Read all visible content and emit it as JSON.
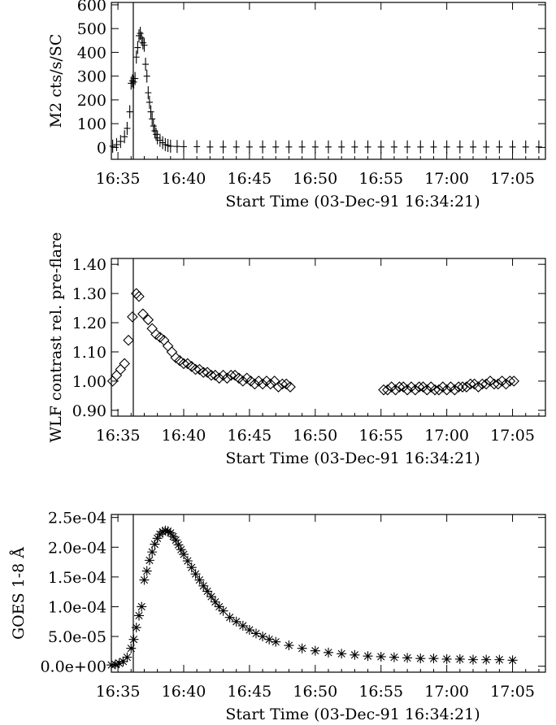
{
  "chart_data": [
    {
      "type": "scatter",
      "marker": "plus-with-error-bars",
      "xlabel": "Start Time (03-Dec-91 16:34:21)",
      "ylabel": "M2 cts/s/SC",
      "x_tick_labels": [
        "16:35",
        "16:40",
        "16:45",
        "16:50",
        "16:55",
        "17:00",
        "17:05"
      ],
      "y_tick_labels": [
        "0",
        "100",
        "200",
        "300",
        "400",
        "500",
        "600"
      ],
      "xlim_minutes_after_16_34": [
        0.5,
        33.5
      ],
      "ylim": [
        -50,
        610
      ],
      "vertical_marker_time": "16:36:10",
      "x": [
        0.6,
        0.9,
        1.2,
        1.5,
        1.7,
        1.9,
        2.0,
        2.1,
        2.2,
        2.3,
        2.4,
        2.5,
        2.6,
        2.7,
        2.8,
        2.9,
        3.0,
        3.1,
        3.2,
        3.3,
        3.4,
        3.5,
        3.6,
        3.7,
        3.8,
        3.9,
        4.0,
        4.2,
        4.4,
        4.6,
        4.8,
        5.0,
        5.5,
        6,
        7,
        8,
        9,
        10,
        11,
        12,
        13,
        14,
        15,
        16,
        17,
        18,
        19,
        20,
        21,
        22,
        23,
        24,
        25,
        26,
        27,
        28,
        29,
        30,
        31,
        32,
        33
      ],
      "y": [
        5,
        12,
        25,
        45,
        80,
        150,
        270,
        280,
        275,
        290,
        380,
        420,
        470,
        480,
        460,
        440,
        430,
        350,
        300,
        230,
        190,
        150,
        120,
        90,
        70,
        55,
        40,
        30,
        20,
        12,
        8,
        5,
        4,
        3,
        3,
        2,
        2,
        2,
        2,
        2,
        2,
        2,
        2,
        2,
        2,
        2,
        2,
        2,
        2,
        2,
        2,
        2,
        2,
        2,
        2,
        2,
        2,
        2,
        2,
        2,
        2
      ]
    },
    {
      "type": "scatter",
      "marker": "diamond",
      "xlabel": "Start Time (03-Dec-91 16:34:21)",
      "ylabel": "WLF contrast rel. pre-flare",
      "x_tick_labels": [
        "16:35",
        "16:40",
        "16:45",
        "16:50",
        "16:55",
        "17:00",
        "17:05"
      ],
      "y_tick_labels": [
        "0.90",
        "1.00",
        "1.10",
        "1.20",
        "1.30",
        "1.40"
      ],
      "xlim_minutes_after_16_34": [
        0.5,
        33.5
      ],
      "ylim": [
        0.88,
        1.42
      ],
      "vertical_marker_time": "16:36:10",
      "x": [
        0.6,
        0.9,
        1.2,
        1.5,
        1.8,
        2.1,
        2.4,
        2.6,
        2.9,
        3.3,
        3.6,
        3.9,
        4.2,
        4.5,
        4.8,
        5.1,
        5.4,
        5.7,
        6.0,
        6.3,
        6.6,
        6.9,
        7.2,
        7.5,
        7.8,
        8.1,
        8.4,
        8.7,
        9.0,
        9.3,
        9.6,
        9.9,
        10.2,
        10.5,
        10.8,
        11.1,
        11.4,
        11.7,
        12.0,
        12.3,
        12.6,
        12.9,
        13.2,
        13.5,
        13.8,
        14.1,
        21.2,
        21.5,
        21.8,
        22.1,
        22.4,
        22.7,
        23.0,
        23.3,
        23.6,
        23.9,
        24.2,
        24.5,
        24.8,
        25.1,
        25.4,
        25.7,
        26.0,
        26.3,
        26.6,
        26.9,
        27.2,
        27.5,
        27.8,
        28.1,
        28.4,
        28.7,
        29.0,
        29.3,
        29.6,
        29.9,
        30.2,
        30.5,
        30.8,
        31.1
      ],
      "y": [
        1.0,
        1.02,
        1.04,
        1.06,
        1.14,
        1.22,
        1.3,
        1.29,
        1.23,
        1.21,
        1.18,
        1.16,
        1.15,
        1.14,
        1.12,
        1.1,
        1.08,
        1.07,
        1.06,
        1.06,
        1.05,
        1.04,
        1.04,
        1.03,
        1.03,
        1.02,
        1.02,
        1.01,
        1.02,
        1.01,
        1.02,
        1.02,
        1.01,
        1.0,
        1.01,
        1.0,
        0.99,
        1.0,
        0.99,
        1.0,
        0.99,
        1.0,
        0.98,
        0.99,
        0.99,
        0.98,
        0.97,
        0.97,
        0.98,
        0.97,
        0.98,
        0.98,
        0.97,
        0.98,
        0.97,
        0.98,
        0.98,
        0.97,
        0.98,
        0.97,
        0.97,
        0.98,
        0.97,
        0.98,
        0.97,
        0.98,
        0.98,
        0.98,
        0.99,
        0.99,
        0.98,
        0.99,
        0.99,
        1.0,
        0.99,
        0.99,
        1.0,
        0.99,
        1.0,
        1.0
      ]
    },
    {
      "type": "scatter",
      "marker": "asterisk",
      "xlabel": "Start Time (03-Dec-91 16:34:21)",
      "ylabel": "GOES 1-8 Å",
      "x_tick_labels": [
        "16:35",
        "16:40",
        "16:45",
        "16:50",
        "16:55",
        "17:00",
        "17:05"
      ],
      "y_tick_labels": [
        "0.0e+00",
        "5.0e-05",
        "1.0e-04",
        "1.5e-04",
        "2.0e-04",
        "2.5e-04"
      ],
      "xlim_minutes_after_16_34": [
        0.5,
        33.5
      ],
      "ylim": [
        -1e-05,
        0.000255
      ],
      "vertical_marker_time": "16:36:10",
      "x": [
        0.5,
        0.8,
        1.1,
        1.4,
        1.7,
        2.0,
        2.2,
        2.4,
        2.6,
        2.8,
        3.0,
        3.2,
        3.4,
        3.6,
        3.8,
        4.0,
        4.2,
        4.4,
        4.6,
        4.8,
        5.0,
        5.2,
        5.4,
        5.6,
        5.8,
        6.0,
        6.3,
        6.6,
        6.9,
        7.2,
        7.5,
        7.8,
        8.1,
        8.4,
        8.7,
        9.0,
        9.5,
        10.0,
        10.5,
        11.0,
        11.5,
        12.0,
        12.5,
        13.0,
        14,
        15,
        16,
        17,
        18,
        19,
        20,
        21,
        22,
        23,
        24,
        25,
        26,
        27,
        28,
        29,
        30,
        31
      ],
      "y": [
        2e-06,
        3e-06,
        5e-06,
        8e-06,
        1.5e-05,
        3e-05,
        4.5e-05,
        6.5e-05,
        8.5e-05,
        0.0001,
        0.000145,
        0.00016,
        0.000178,
        0.000192,
        0.000205,
        0.000215,
        0.000222,
        0.000226,
        0.000228,
        0.000227,
        0.000224,
        0.000218,
        0.000212,
        0.000204,
        0.000196,
        0.000188,
        0.000177,
        0.000166,
        0.000155,
        0.000145,
        0.000135,
        0.000126,
        0.000117,
        0.000108,
        0.0001,
        9.3e-05,
        8.2e-05,
        7.5e-05,
        6.8e-05,
        6.1e-05,
        5.5e-05,
        5e-05,
        4.5e-05,
        4.1e-05,
        3.5e-05,
        3e-05,
        2.6e-05,
        2.3e-05,
        2.1e-05,
        1.9e-05,
        1.7e-05,
        1.6e-05,
        1.5e-05,
        1.4e-05,
        1.3e-05,
        1.3e-05,
        1.2e-05,
        1.2e-05,
        1.1e-05,
        1.1e-05,
        1.1e-05,
        1e-05
      ]
    }
  ]
}
